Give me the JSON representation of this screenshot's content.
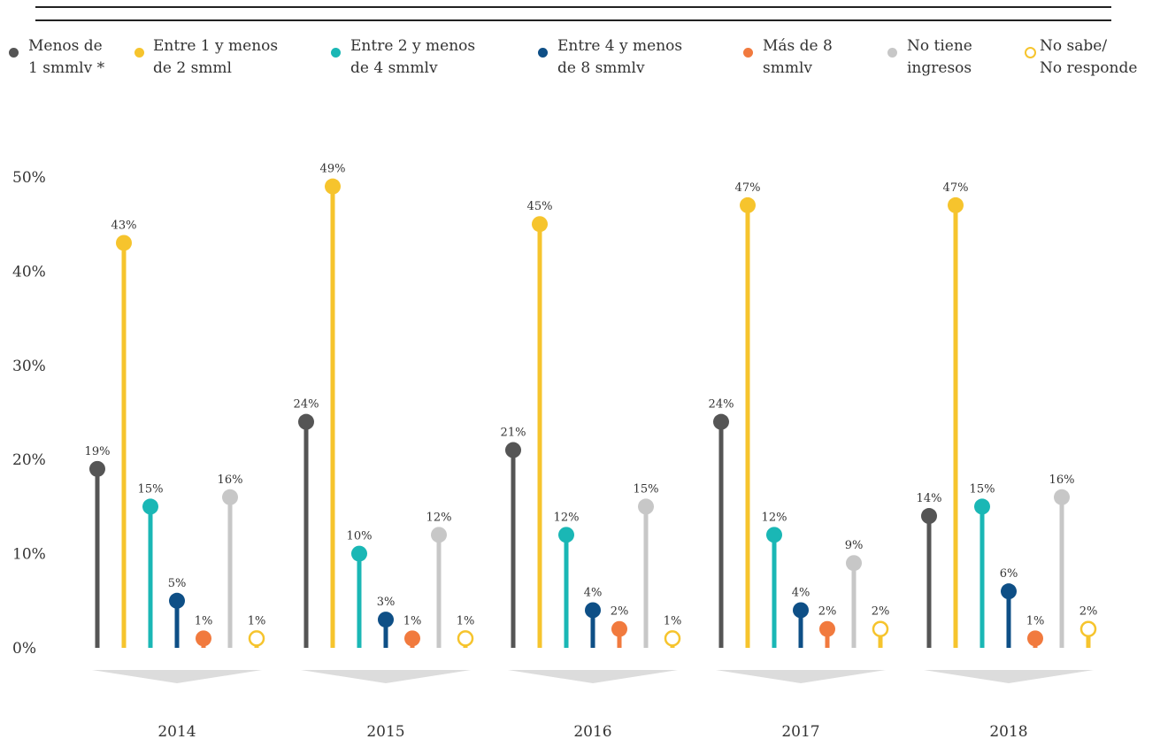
{
  "chart_data": {
    "type": "lollipop",
    "categories": [
      "2014",
      "2015",
      "2016",
      "2017",
      "2018"
    ],
    "ylim": [
      0,
      50
    ],
    "yticks": [
      {
        "value": 0,
        "label": "0%"
      },
      {
        "value": 10,
        "label": "10%"
      },
      {
        "value": 20,
        "label": "20%"
      },
      {
        "value": 30,
        "label": "30%"
      },
      {
        "value": 40,
        "label": "40%"
      },
      {
        "value": 50,
        "label": "50%"
      }
    ],
    "series": [
      {
        "name": "Menos de\n1 smmlv *",
        "color": "#555555",
        "values": [
          19,
          24,
          21,
          24,
          14
        ],
        "value_labels": [
          "19%",
          "24%",
          "21%",
          "24%",
          "14%"
        ]
      },
      {
        "name": "Entre 1 y menos\nde 2 smml",
        "color": "#f6c42d",
        "values": [
          43,
          49,
          45,
          47,
          47
        ],
        "value_labels": [
          "43%",
          "49%",
          "45%",
          "47%",
          "47%"
        ]
      },
      {
        "name": "Entre 2 y menos\nde 4 smmlv",
        "color": "#1ab7b5",
        "values": [
          15,
          10,
          12,
          12,
          15
        ],
        "value_labels": [
          "15%",
          "10%",
          "12%",
          "12%",
          "15%"
        ]
      },
      {
        "name": "Entre 4 y menos\nde 8 smmlv",
        "color": "#0e4f86",
        "values": [
          5,
          3,
          4,
          4,
          6
        ],
        "value_labels": [
          "5%",
          "3%",
          "4%",
          "4%",
          "6%"
        ]
      },
      {
        "name": "Más de 8\nsmmlv",
        "color": "#f17a3e",
        "values": [
          1,
          1,
          2,
          2,
          1
        ],
        "value_labels": [
          "1%",
          "1%",
          "2%",
          "2%",
          "1%"
        ]
      },
      {
        "name": "No tiene\ningresos",
        "color": "#c7c7c7",
        "values": [
          16,
          12,
          15,
          9,
          16
        ],
        "value_labels": [
          "16%",
          "12%",
          "15%",
          "9%",
          "16%"
        ]
      },
      {
        "name": "No sabe/\nNo responde",
        "color": "#f6c42d",
        "hollow": true,
        "values": [
          1,
          1,
          1,
          2,
          2
        ],
        "value_labels": [
          "1%",
          "1%",
          "1%",
          "2%",
          "2%"
        ]
      }
    ]
  }
}
